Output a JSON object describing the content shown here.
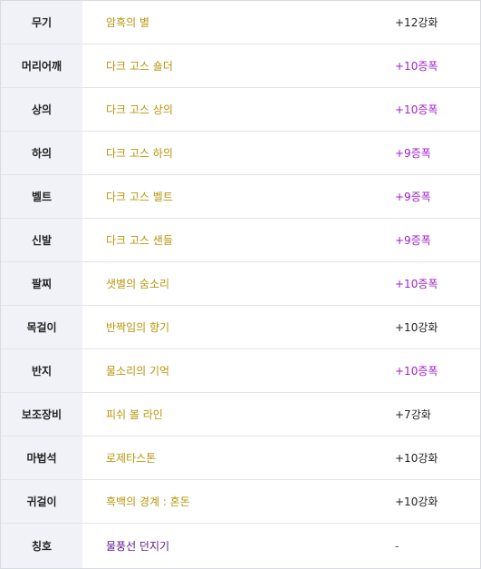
{
  "colors": {
    "item_gold": "#b8950a",
    "item_purple": "#5a1a8a",
    "enh_purple": "#a020c8",
    "enh_black": "#222222",
    "enh_gray": "#555555"
  },
  "rows": [
    {
      "slot": "무기",
      "item": "암흑의 별",
      "item_color": "#b8950a",
      "enh": "+12강화",
      "enh_color": "#222222"
    },
    {
      "slot": "머리어깨",
      "item": "다크 고스 숄더",
      "item_color": "#b8950a",
      "enh": "+10증폭",
      "enh_color": "#a020c8"
    },
    {
      "slot": "상의",
      "item": "다크 고스 상의",
      "item_color": "#b8950a",
      "enh": "+10증폭",
      "enh_color": "#a020c8"
    },
    {
      "slot": "하의",
      "item": "다크 고스 하의",
      "item_color": "#b8950a",
      "enh": "+9증폭",
      "enh_color": "#a020c8"
    },
    {
      "slot": "벨트",
      "item": "다크 고스 벨트",
      "item_color": "#b8950a",
      "enh": "+9증폭",
      "enh_color": "#a020c8"
    },
    {
      "slot": "신발",
      "item": "다크 고스 샌들",
      "item_color": "#b8950a",
      "enh": "+9증폭",
      "enh_color": "#a020c8"
    },
    {
      "slot": "팔찌",
      "item": "샛별의 숨소리",
      "item_color": "#b8950a",
      "enh": "+10증폭",
      "enh_color": "#a020c8"
    },
    {
      "slot": "목걸이",
      "item": "반짝임의 향기",
      "item_color": "#b8950a",
      "enh": "+10강화",
      "enh_color": "#222222"
    },
    {
      "slot": "반지",
      "item": "물소리의 기억",
      "item_color": "#b8950a",
      "enh": "+10증폭",
      "enh_color": "#a020c8"
    },
    {
      "slot": "보조장비",
      "item": "피쉬 볼 라인",
      "item_color": "#b8950a",
      "enh": "+7강화",
      "enh_color": "#222222"
    },
    {
      "slot": "마법석",
      "item": "로제타스톤",
      "item_color": "#b8950a",
      "enh": "+10강화",
      "enh_color": "#222222"
    },
    {
      "slot": "귀걸이",
      "item": "흑백의 경계 : 혼돈",
      "item_color": "#b8950a",
      "enh": "+10강화",
      "enh_color": "#222222"
    },
    {
      "slot": "칭호",
      "item": "물풍선 던지기",
      "item_color": "#5a1a8a",
      "enh": "-",
      "enh_color": "#555555"
    }
  ]
}
